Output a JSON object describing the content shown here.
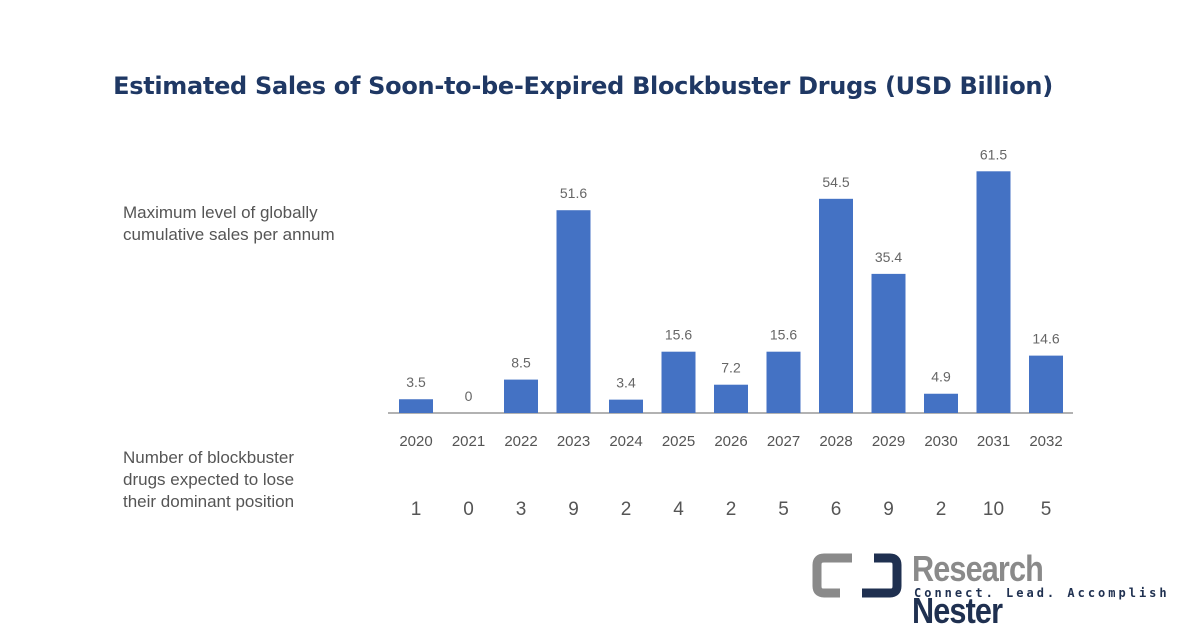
{
  "chart_data": {
    "type": "bar",
    "title": "Estimated Sales of Soon-to-be-Expired Blockbuster Drugs (USD Billion)",
    "series_label": "Maximum level of globally cumulative sales per annum",
    "count_label": "Number of blockbuster drugs expected to lose their dominant position",
    "categories": [
      "2020",
      "2021",
      "2022",
      "2023",
      "2024",
      "2025",
      "2026",
      "2027",
      "2028",
      "2029",
      "2030",
      "2031",
      "2032"
    ],
    "values": [
      3.5,
      0,
      8.5,
      51.6,
      3.4,
      15.6,
      7.2,
      15.6,
      54.5,
      35.4,
      4.9,
      61.5,
      14.6
    ],
    "counts": [
      1,
      0,
      3,
      9,
      2,
      4,
      2,
      5,
      6,
      9,
      2,
      10,
      5
    ],
    "ylim": [
      0,
      65
    ],
    "grid": false,
    "bar_color": "#4472c4"
  },
  "label_lines": {
    "sales": [
      "Maximum level of globally",
      "cumulative sales per annum"
    ],
    "counts": [
      "Number of blockbuster",
      "drugs expected to lose",
      "their dominant position"
    ]
  },
  "logo": {
    "name1": "Research",
    "name2": "Nester",
    "tagline": "Connect. Lead. Accomplish"
  }
}
